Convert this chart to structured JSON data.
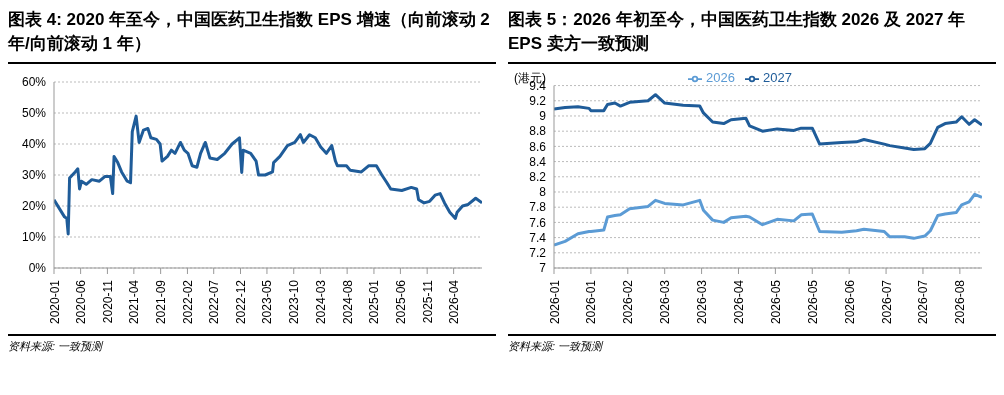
{
  "chart_data": [
    {
      "type": "line",
      "title": "图表 4: 2020 年至今，中国医药卫生指数 EPS 增速（向前滚动 2 年/向前滚动 1 年）",
      "x": [
        "2020-01-01",
        "2020-02-08",
        "2020-03-01",
        "2020-03-14",
        "2020-03-22",
        "2020-03-30",
        "2020-05-01",
        "2020-05-16",
        "2020-05-26",
        "2020-06-06",
        "2020-07-03",
        "2020-08-04",
        "2020-09-16",
        "2020-10-17",
        "2020-11-18",
        "2020-12-01",
        "2020-12-09",
        "2020-12-30",
        "2021-01-21",
        "2021-02-22",
        "2021-03-13",
        "2021-03-23",
        "2021-04-14",
        "2021-05-01",
        "2021-05-26",
        "2021-06-20",
        "2021-07-07",
        "2021-08-08",
        "2021-08-29",
        "2021-09-09",
        "2021-10-10",
        "2021-11-01",
        "2021-11-22",
        "2021-12-23",
        "2022-01-14",
        "2022-02-04",
        "2022-02-28",
        "2022-03-27",
        "2022-04-17",
        "2022-05-14",
        "2022-06-09",
        "2022-07-21",
        "2022-09-02",
        "2022-10-14",
        "2022-11-25",
        "2022-12-08",
        "2022-12-16",
        "2023-01-28",
        "2023-02-28",
        "2023-03-14",
        "2023-04-21",
        "2023-06-02",
        "2023-06-08",
        "2023-07-14",
        "2023-08-26",
        "2023-10-07",
        "2023-11-08",
        "2023-11-25",
        "2023-12-30",
        "2024-02-01",
        "2024-03-03",
        "2024-04-04",
        "2024-05-05",
        "2024-05-26",
        "2024-06-06",
        "2024-07-28",
        "2024-08-19",
        "2024-10-21",
        "2024-12-03",
        "2025-01-15",
        "2025-02-15",
        "2025-03-16",
        "2025-04-07",
        "2025-06-09",
        "2025-08-02",
        "2025-09-02",
        "2025-09-13",
        "2025-10-14",
        "2025-11-15",
        "2025-12-16",
        "2026-01-14",
        "2026-02-08",
        "2026-03-10",
        "2026-04-11",
        "2026-04-21",
        "2026-05-22",
        "2026-06-23",
        "2026-08-05",
        "2026-09-10"
      ],
      "series": [
        {
          "color": "#1f5c99",
          "values": [
            22,
            18.5,
            16.5,
            16,
            11,
            29,
            31,
            32,
            25.5,
            28,
            27,
            28.5,
            28,
            29.5,
            29.5,
            24,
            36,
            34,
            31,
            28,
            27.5,
            44,
            49,
            40.5,
            44.5,
            45,
            42,
            41.5,
            40,
            34.5,
            36,
            38,
            37,
            40.5,
            38,
            37,
            33,
            32.5,
            37,
            40.5,
            35.5,
            35,
            37,
            40,
            42,
            30.8,
            38,
            37,
            34.5,
            30,
            30,
            31,
            34,
            36,
            39.5,
            40.5,
            43,
            40.5,
            43,
            42,
            39,
            37,
            39.5,
            34.5,
            33,
            33,
            31.5,
            31,
            33,
            33,
            30,
            27.5,
            25.5,
            25,
            26,
            25.5,
            22,
            21,
            21.5,
            23.5,
            24,
            21,
            18,
            16,
            18,
            20,
            20.5,
            22.5,
            21
          ]
        }
      ],
      "xlim": [
        "2020-01-01",
        "2026-09-10"
      ],
      "xticks": [
        "2020-01",
        "2020-06",
        "2020-11",
        "2021-04",
        "2021-09",
        "2022-02",
        "2022-07",
        "2022-12",
        "2023-05",
        "2023-10",
        "2024-03",
        "2024-08",
        "2025-01",
        "2025-06",
        "2025-11",
        "2026-04"
      ],
      "ylim": [
        0,
        60
      ],
      "yticks": [
        {
          "value": 0,
          "label": "0%"
        },
        {
          "value": 10,
          "label": "10%"
        },
        {
          "value": 20,
          "label": "20%"
        },
        {
          "value": 30,
          "label": "30%"
        },
        {
          "value": 40,
          "label": "40%"
        },
        {
          "value": 50,
          "label": "50%"
        },
        {
          "value": 60,
          "label": "60%"
        }
      ],
      "grid": "y",
      "marker": "none",
      "line_style": "solid",
      "annotations": [
        "资料来源: 一致预测"
      ]
    },
    {
      "type": "line",
      "title": "图表 5：2026 年初至今，中国医药卫生指数 2026 及 2027 年 EPS 卖方一致预测",
      "ylabel": "(港元)",
      "x": [
        "2026-01-02",
        "2026-01-08",
        "2026-01-15",
        "2026-01-21",
        "2026-01-22",
        "2026-01-29",
        "2026-01-31",
        "2026-02-04",
        "2026-02-07",
        "2026-02-12",
        "2026-02-22",
        "2026-02-26",
        "2026-03-03",
        "2026-03-13",
        "2026-03-22",
        "2026-03-24",
        "2026-03-29",
        "2026-04-04",
        "2026-04-08",
        "2026-04-16",
        "2026-04-18",
        "2026-04-25",
        "2026-05-03",
        "2026-05-12",
        "2026-05-16",
        "2026-05-22",
        "2026-05-26",
        "2026-06-07",
        "2026-06-15",
        "2026-06-19",
        "2026-06-30",
        "2026-07-03",
        "2026-07-11",
        "2026-07-16",
        "2026-07-22",
        "2026-07-25",
        "2026-07-29",
        "2026-08-02",
        "2026-08-08",
        "2026-08-11",
        "2026-08-15",
        "2026-08-18",
        "2026-08-22"
      ],
      "series": [
        {
          "name": "2026",
          "color": "#5b9bd5",
          "values": [
            7.3,
            7.35,
            7.45,
            7.48,
            7.48,
            7.5,
            7.67,
            7.69,
            7.7,
            7.78,
            7.81,
            7.89,
            7.85,
            7.83,
            7.89,
            7.76,
            7.63,
            7.6,
            7.66,
            7.68,
            7.67,
            7.57,
            7.64,
            7.62,
            7.7,
            7.71,
            7.48,
            7.47,
            7.49,
            7.51,
            7.48,
            7.41,
            7.41,
            7.39,
            7.42,
            7.49,
            7.69,
            7.71,
            7.73,
            7.83,
            7.87,
            7.97,
            7.93
          ]
        },
        {
          "name": "2027",
          "color": "#1f5c99",
          "values": [
            9.09,
            9.11,
            9.12,
            9.1,
            9.07,
            9.07,
            9.15,
            9.17,
            9.13,
            9.18,
            9.2,
            9.28,
            9.17,
            9.14,
            9.13,
            9.04,
            8.92,
            8.9,
            8.95,
            8.97,
            8.87,
            8.8,
            8.83,
            8.81,
            8.84,
            8.84,
            8.63,
            8.65,
            8.66,
            8.69,
            8.63,
            8.61,
            8.58,
            8.56,
            8.57,
            8.64,
            8.85,
            8.9,
            8.92,
            8.99,
            8.89,
            8.95,
            8.88
          ]
        }
      ],
      "xlim": [
        "2026-01-02",
        "2026-08-22"
      ],
      "xticks": [
        {
          "value": "2026-01-02",
          "label": "2026-01"
        },
        {
          "value": "2026-01-22",
          "label": "2026-01"
        },
        {
          "value": "2026-02-11",
          "label": "2026-02"
        },
        {
          "value": "2026-03-03",
          "label": "2026-03"
        },
        {
          "value": "2026-03-23",
          "label": "2026-03"
        },
        {
          "value": "2026-04-12",
          "label": "2026-04"
        },
        {
          "value": "2026-05-02",
          "label": "2026-05"
        },
        {
          "value": "2026-05-22",
          "label": "2026-05"
        },
        {
          "value": "2026-06-11",
          "label": "2026-06"
        },
        {
          "value": "2026-07-01",
          "label": "2026-07"
        },
        {
          "value": "2026-07-21",
          "label": "2026-07"
        },
        {
          "value": "2026-08-10",
          "label": "2026-08"
        }
      ],
      "ylim": [
        7,
        9.4
      ],
      "yticks": [
        7,
        7.2,
        7.4,
        7.6,
        7.8,
        8,
        8.2,
        8.4,
        8.6,
        8.8,
        9,
        9.2,
        9.4
      ],
      "grid": "y",
      "legend": "top",
      "marker": "none",
      "line_style": "solid",
      "annotations": [
        "资料来源: 一致预测"
      ]
    }
  ]
}
